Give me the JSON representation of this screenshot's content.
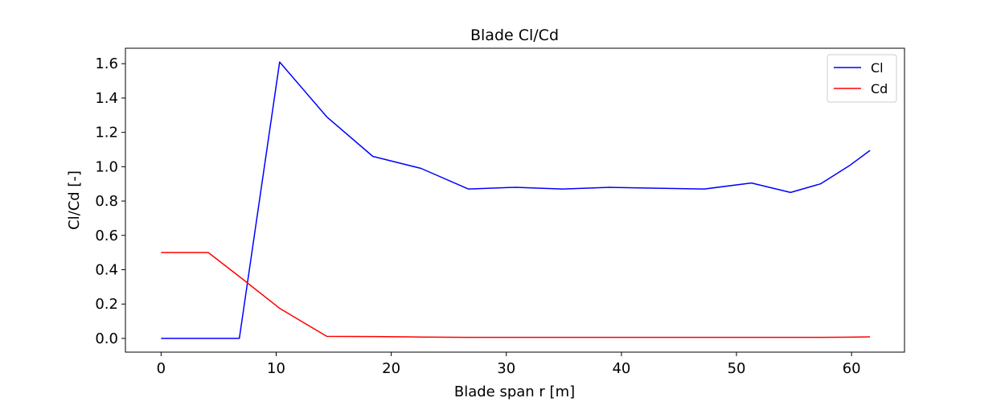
{
  "chart_data": {
    "type": "line",
    "title": "Blade Cl/Cd",
    "xlabel": "Blade span r [m]",
    "ylabel": "Cl/Cd [-]",
    "xlim": [
      -3.1,
      64.6
    ],
    "ylim": [
      -0.08,
      1.69
    ],
    "xticks": [
      0,
      10,
      20,
      30,
      40,
      50,
      60
    ],
    "yticks": [
      0.0,
      0.2,
      0.4,
      0.6,
      0.8,
      1.0,
      1.2,
      1.4,
      1.6
    ],
    "grid": false,
    "legend_position": "top-right",
    "series": [
      {
        "name": "Cl",
        "color": "#0000ff",
        "x": [
          0,
          4.1,
          6.8,
          10.3,
          14.4,
          18.4,
          22.6,
          26.7,
          30.8,
          34.9,
          39.0,
          43.1,
          47.2,
          51.3,
          54.7,
          57.3,
          59.9,
          61.6
        ],
        "y": [
          0.0,
          0.0,
          0.0,
          1.61,
          1.29,
          1.06,
          0.99,
          0.87,
          0.88,
          0.87,
          0.88,
          0.875,
          0.87,
          0.905,
          0.85,
          0.9,
          1.01,
          1.095
        ]
      },
      {
        "name": "Cd",
        "color": "#ff0000",
        "x": [
          0,
          4.1,
          6.8,
          10.3,
          14.4,
          18.4,
          22.6,
          26.7,
          30.8,
          34.9,
          39.0,
          43.1,
          47.2,
          51.3,
          54.7,
          57.3,
          59.9,
          61.6
        ],
        "y": [
          0.5,
          0.5,
          0.36,
          0.175,
          0.012,
          0.011,
          0.008,
          0.006,
          0.006,
          0.006,
          0.006,
          0.006,
          0.006,
          0.006,
          0.006,
          0.006,
          0.007,
          0.009
        ]
      }
    ]
  }
}
